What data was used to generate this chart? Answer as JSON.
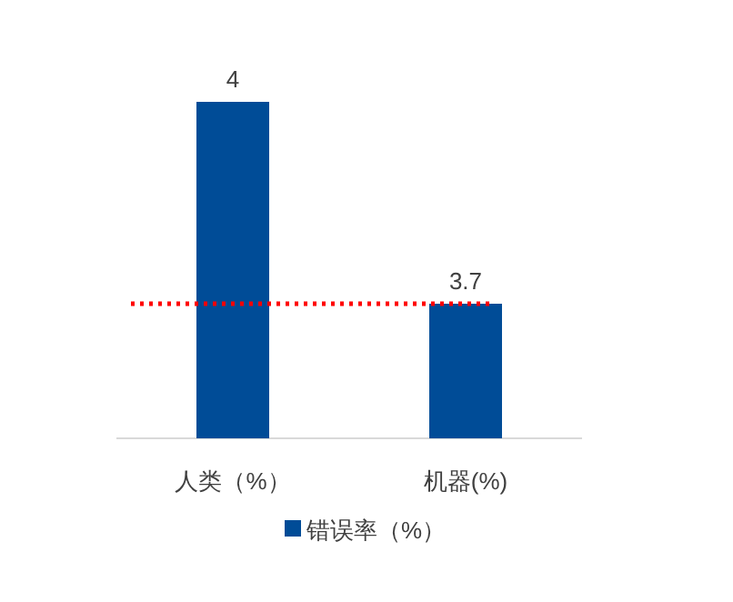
{
  "chart_data": {
    "type": "bar",
    "categories": [
      "人类（%）",
      "机器(%)"
    ],
    "series": [
      {
        "name": "错误率（%）",
        "color": "#004c97",
        "values": [
          4,
          3.7
        ]
      }
    ],
    "ylim": [
      3.5,
      4
    ],
    "tick_labels": "x",
    "data_labels": true,
    "legend": "bottom",
    "ref_lines": [
      {
        "axis": "y",
        "value": 3.7,
        "color": "#ff0000",
        "line_style": "dotted"
      }
    ]
  }
}
